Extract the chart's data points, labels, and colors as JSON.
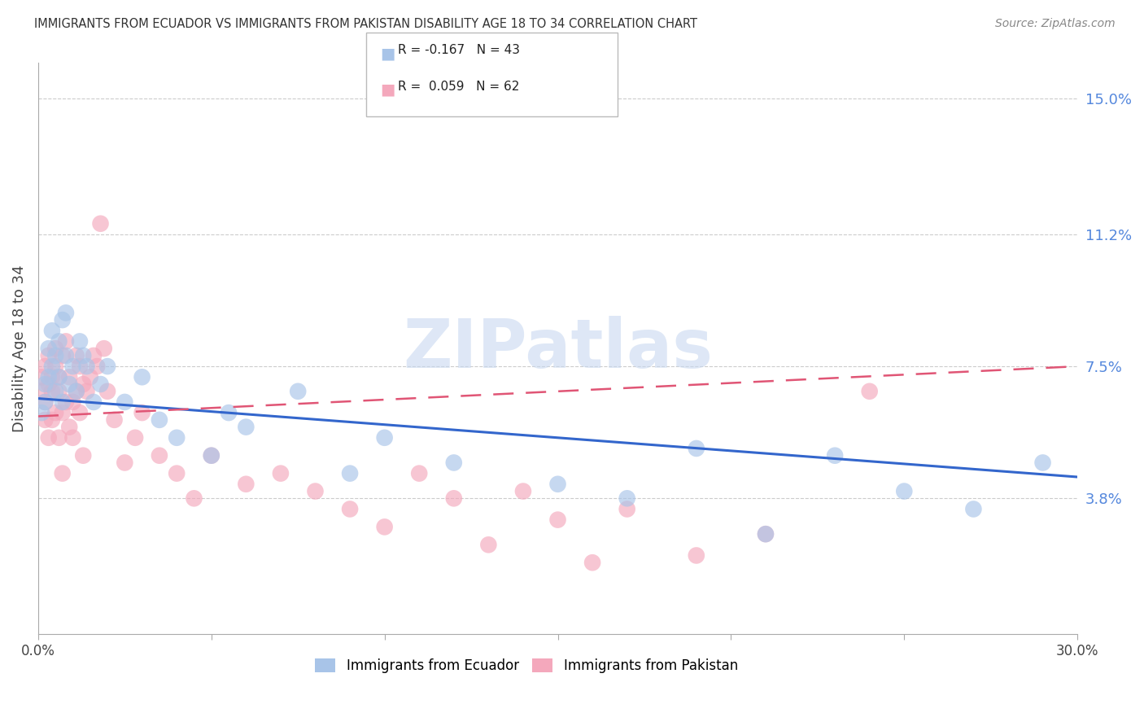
{
  "title": "IMMIGRANTS FROM ECUADOR VS IMMIGRANTS FROM PAKISTAN DISABILITY AGE 18 TO 34 CORRELATION CHART",
  "source": "Source: ZipAtlas.com",
  "ylabel": "Disability Age 18 to 34",
  "xlim": [
    0.0,
    0.3
  ],
  "ylim": [
    0.0,
    0.16
  ],
  "xticks": [
    0.0,
    0.05,
    0.1,
    0.15,
    0.2,
    0.25,
    0.3
  ],
  "xticklabels": [
    "0.0%",
    "",
    "",
    "",
    "",
    "",
    "30.0%"
  ],
  "right_yticks": [
    0.038,
    0.075,
    0.112,
    0.15
  ],
  "right_yticklabels": [
    "3.8%",
    "7.5%",
    "11.2%",
    "15.0%"
  ],
  "ecuador_color": "#a8c4e8",
  "pakistan_color": "#f4a8bc",
  "ecuador_line_color": "#3366cc",
  "pakistan_line_color": "#e05575",
  "ecuador_R": -0.167,
  "ecuador_N": 43,
  "pakistan_R": 0.059,
  "pakistan_N": 62,
  "watermark": "ZIPatlas",
  "watermark_color": "#c8d8f0",
  "ecuador_x": [
    0.001,
    0.002,
    0.002,
    0.003,
    0.003,
    0.004,
    0.004,
    0.005,
    0.005,
    0.006,
    0.006,
    0.007,
    0.007,
    0.008,
    0.008,
    0.009,
    0.01,
    0.011,
    0.012,
    0.013,
    0.014,
    0.016,
    0.018,
    0.02,
    0.025,
    0.03,
    0.035,
    0.04,
    0.05,
    0.055,
    0.06,
    0.075,
    0.09,
    0.1,
    0.12,
    0.15,
    0.17,
    0.19,
    0.21,
    0.23,
    0.25,
    0.27,
    0.29
  ],
  "ecuador_y": [
    0.062,
    0.07,
    0.065,
    0.08,
    0.072,
    0.085,
    0.075,
    0.078,
    0.068,
    0.082,
    0.072,
    0.088,
    0.065,
    0.09,
    0.078,
    0.07,
    0.075,
    0.068,
    0.082,
    0.078,
    0.075,
    0.065,
    0.07,
    0.075,
    0.065,
    0.072,
    0.06,
    0.055,
    0.05,
    0.062,
    0.058,
    0.068,
    0.045,
    0.055,
    0.048,
    0.042,
    0.038,
    0.052,
    0.028,
    0.05,
    0.04,
    0.035,
    0.048
  ],
  "pakistan_x": [
    0.001,
    0.001,
    0.002,
    0.002,
    0.002,
    0.003,
    0.003,
    0.003,
    0.004,
    0.004,
    0.004,
    0.005,
    0.005,
    0.005,
    0.006,
    0.006,
    0.006,
    0.007,
    0.007,
    0.007,
    0.008,
    0.008,
    0.009,
    0.009,
    0.01,
    0.01,
    0.011,
    0.011,
    0.012,
    0.012,
    0.013,
    0.013,
    0.014,
    0.015,
    0.016,
    0.017,
    0.018,
    0.019,
    0.02,
    0.022,
    0.025,
    0.028,
    0.03,
    0.035,
    0.04,
    0.045,
    0.05,
    0.06,
    0.07,
    0.08,
    0.09,
    0.1,
    0.11,
    0.12,
    0.13,
    0.14,
    0.15,
    0.16,
    0.17,
    0.19,
    0.21,
    0.24
  ],
  "pakistan_y": [
    0.068,
    0.072,
    0.06,
    0.075,
    0.065,
    0.055,
    0.07,
    0.078,
    0.06,
    0.072,
    0.068,
    0.08,
    0.062,
    0.075,
    0.055,
    0.068,
    0.072,
    0.045,
    0.062,
    0.078,
    0.065,
    0.082,
    0.058,
    0.072,
    0.065,
    0.055,
    0.078,
    0.068,
    0.075,
    0.062,
    0.05,
    0.07,
    0.068,
    0.072,
    0.078,
    0.075,
    0.115,
    0.08,
    0.068,
    0.06,
    0.048,
    0.055,
    0.062,
    0.05,
    0.045,
    0.038,
    0.05,
    0.042,
    0.045,
    0.04,
    0.035,
    0.03,
    0.045,
    0.038,
    0.025,
    0.04,
    0.032,
    0.02,
    0.035,
    0.022,
    0.028,
    0.068
  ],
  "ecuador_line_x0": 0.0,
  "ecuador_line_y0": 0.066,
  "ecuador_line_x1": 0.3,
  "ecuador_line_y1": 0.044,
  "pakistan_line_x0": 0.0,
  "pakistan_line_y0": 0.061,
  "pakistan_line_x1": 0.3,
  "pakistan_line_y1": 0.075
}
